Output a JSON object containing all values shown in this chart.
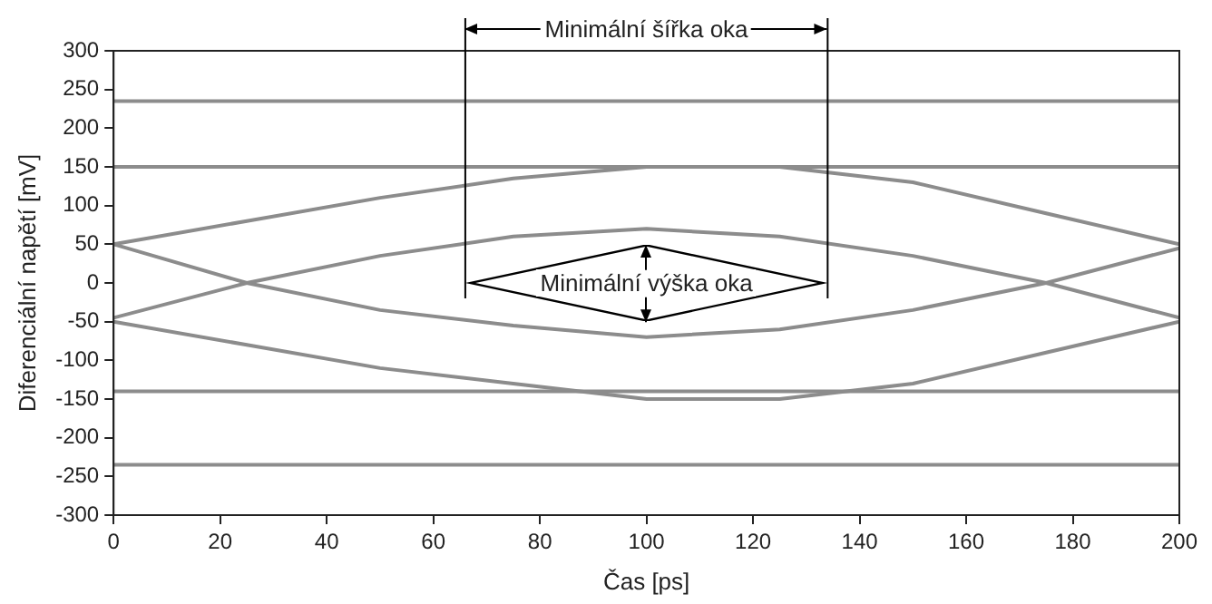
{
  "chart_data": {
    "type": "line",
    "xlabel": "Čas [ps]",
    "ylabel": "Diferenciální napětí [mV]",
    "x": [
      0,
      25,
      50,
      75,
      100,
      125,
      150,
      175,
      200
    ],
    "xlim": [
      0,
      200
    ],
    "xticks": [
      0,
      20,
      40,
      60,
      80,
      100,
      120,
      140,
      160,
      180,
      200
    ],
    "ylim": [
      -300,
      300
    ],
    "yticks": [
      -300,
      -250,
      -200,
      -150,
      -100,
      -50,
      0,
      50,
      100,
      150,
      200,
      250,
      300
    ],
    "grid": false,
    "legend": false,
    "marker": "none",
    "line_style": "solid",
    "series": [
      {
        "color": "#8c8c8c",
        "values": [
          235,
          235,
          235,
          235,
          235,
          235,
          235,
          235,
          235
        ]
      },
      {
        "color": "#8c8c8c",
        "values": [
          150,
          150,
          150,
          150,
          150,
          150,
          150,
          150,
          150
        ]
      },
      {
        "color": "#8c8c8c",
        "values": [
          -235,
          -235,
          -235,
          -235,
          -235,
          -235,
          -235,
          -235,
          -235
        ]
      },
      {
        "color": "#8c8c8c",
        "values": [
          -140,
          -140,
          -140,
          -140,
          -140,
          -140,
          -140,
          -140,
          -140
        ]
      },
      {
        "color": "#8c8c8c",
        "values": [
          50,
          80,
          110,
          135,
          150,
          150,
          130,
          90,
          50
        ]
      },
      {
        "color": "#8c8c8c",
        "values": [
          -45,
          0,
          35,
          60,
          70,
          60,
          35,
          0,
          -45
        ]
      },
      {
        "color": "#8c8c8c",
        "values": [
          -50,
          -80,
          -110,
          -130,
          -150,
          -150,
          -130,
          -90,
          -50
        ]
      },
      {
        "color": "#8c8c8c",
        "values": [
          50,
          0,
          -35,
          -55,
          -70,
          -60,
          -35,
          0,
          45
        ]
      }
    ],
    "ref_lines": [
      {
        "axis": "x",
        "value": 66,
        "color": "#000000"
      },
      {
        "axis": "x",
        "value": 134,
        "color": "#000000"
      }
    ],
    "annotations": [
      "Minimální šířka oka",
      "Minimální výška oka"
    ]
  }
}
